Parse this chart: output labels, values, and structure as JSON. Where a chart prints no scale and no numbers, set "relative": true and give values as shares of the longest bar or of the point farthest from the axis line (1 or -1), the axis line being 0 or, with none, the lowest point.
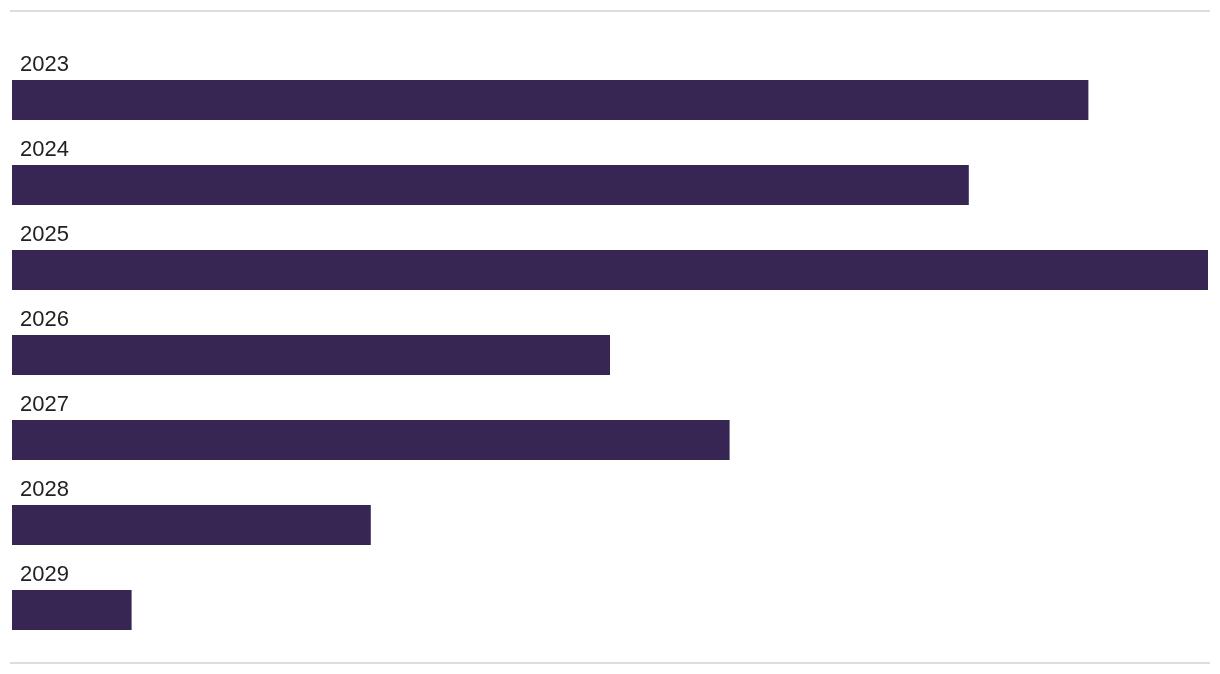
{
  "chart_data": {
    "type": "bar",
    "orientation": "horizontal",
    "relative": true,
    "categories": [
      "2023",
      "2024",
      "2025",
      "2026",
      "2027",
      "2028",
      "2029"
    ],
    "values": [
      0.9,
      0.8,
      1.0,
      0.5,
      0.6,
      0.3,
      0.1
    ],
    "color": "#372554"
  }
}
